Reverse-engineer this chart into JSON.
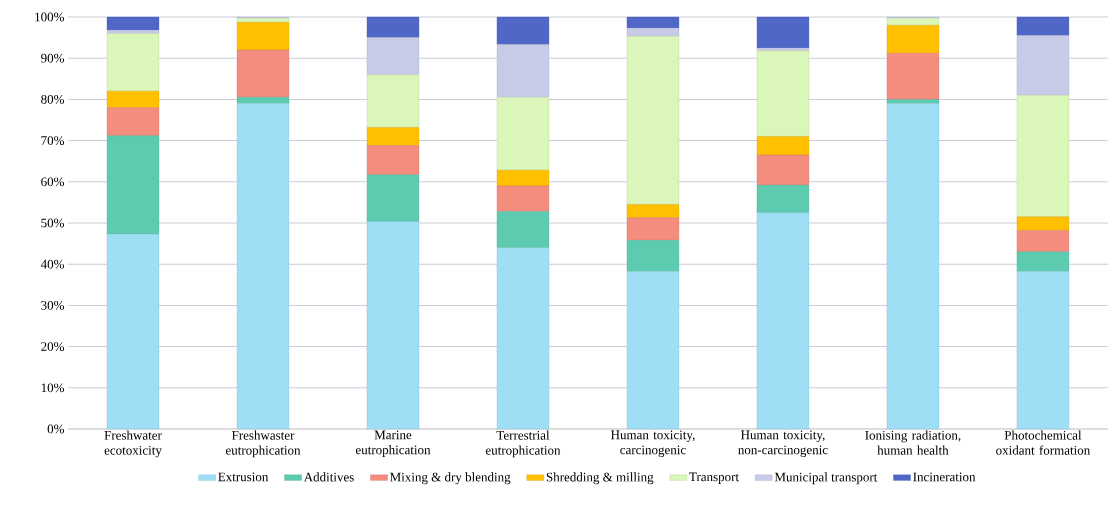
{
  "chart_data": {
    "type": "bar",
    "stacked": true,
    "categories": [
      "Freshwater ecotoxicity",
      "Freshwaster eutrophication",
      "Marine eutrophication",
      "Terrestrial eutrophication",
      "Human toxicity, carcinogenic",
      "Human toxicity, non-carcinogenic",
      "Ionising radiation, human health",
      "Photochemical oxidant formation"
    ],
    "series": [
      {
        "name": "Extrusion",
        "color": "#9fdff6",
        "values": [
          47.3,
          79,
          50.3,
          44,
          38.2,
          52.5,
          79,
          38.2
        ]
      },
      {
        "name": "Additives",
        "color": "#5dcbb0",
        "values": [
          23.9,
          1.5,
          11.4,
          8.8,
          7.6,
          6.7,
          1.0,
          4.8
        ]
      },
      {
        "name": "Mixing & dry blending",
        "color": "#f58d7e",
        "values": [
          6.8,
          11.5,
          7.1,
          6.2,
          5.5,
          7.3,
          11.2,
          5.2
        ]
      },
      {
        "name": "Shredding & milling",
        "color": "#ffc000",
        "values": [
          4.0,
          6.7,
          4.4,
          3.8,
          3.2,
          4.5,
          6.8,
          3.3
        ]
      },
      {
        "name": "Transport",
        "color": "#daf6b8",
        "values": [
          14.0,
          1.0,
          12.8,
          17.7,
          40.8,
          20.8,
          1.7,
          29.5
        ]
      },
      {
        "name": "Municipal transport",
        "color": "#c7cbe8",
        "values": [
          0.8,
          0.3,
          9.0,
          12.8,
          2.0,
          0.7,
          0.3,
          14.5
        ]
      },
      {
        "name": "Incineration",
        "color": "#4f68c8",
        "values": [
          3.2,
          0,
          5.0,
          6.7,
          2.7,
          7.5,
          0,
          4.5
        ]
      }
    ],
    "ylim": [
      0,
      100
    ],
    "yticks": [
      {
        "value": 0,
        "label": "0%"
      },
      {
        "value": 10,
        "label": "10%"
      },
      {
        "value": 20,
        "label": "20%"
      },
      {
        "value": 30,
        "label": "30%"
      },
      {
        "value": 40,
        "label": "40%"
      },
      {
        "value": 50,
        "label": "50%"
      },
      {
        "value": 60,
        "label": "60%"
      },
      {
        "value": 70,
        "label": "70%"
      },
      {
        "value": 80,
        "label": "80%"
      },
      {
        "value": 90,
        "label": "90%"
      },
      {
        "value": 100,
        "label": "100%"
      }
    ],
    "grid": "y",
    "legend": "bottom"
  }
}
